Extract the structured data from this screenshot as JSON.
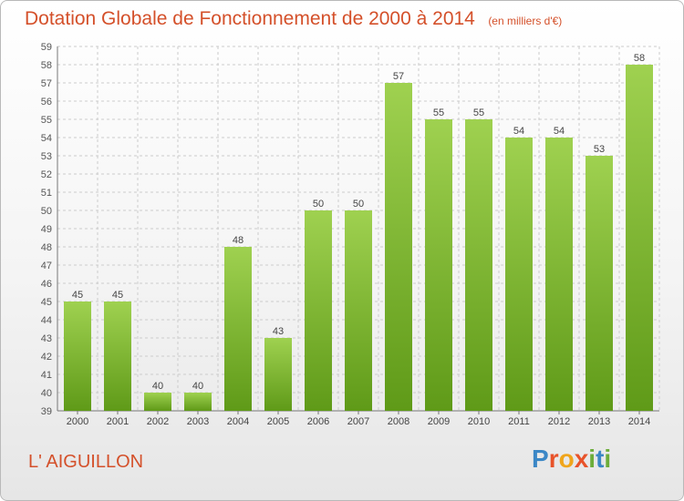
{
  "header": {
    "title": "Dotation Globale de Fonctionnement de 2000 à 2014",
    "subtitle": "(en milliers d'€)"
  },
  "footer": {
    "place": "L' AIGUILLON",
    "logo_letters": [
      "P",
      "r",
      "o",
      "x",
      "i",
      "t",
      "i"
    ]
  },
  "colors": {
    "title": "#d4502a",
    "bar_top": "#9fd150",
    "bar_bottom": "#5f9a18",
    "grid": "#cccccc",
    "logo_blue": "#3b87c6",
    "logo_orange": "#e8532a",
    "logo_yellow": "#f0a51b",
    "logo_green": "#6cad3a"
  },
  "chart_data": {
    "type": "bar",
    "title": "Dotation Globale de Fonctionnement de 2000 à 2014",
    "subtitle": "(en milliers d'€)",
    "xlabel": "",
    "ylabel": "",
    "categories": [
      "2000",
      "2001",
      "2002",
      "2003",
      "2004",
      "2005",
      "2006",
      "2007",
      "2008",
      "2009",
      "2010",
      "2011",
      "2012",
      "2013",
      "2014"
    ],
    "values": [
      45,
      45,
      40,
      40,
      48,
      43,
      50,
      50,
      57,
      55,
      55,
      54,
      54,
      53,
      58
    ],
    "data_labels": [
      "45",
      "45",
      "40",
      "40",
      "48",
      "43",
      "50",
      "50",
      "57",
      "55",
      "55",
      "54",
      "54",
      "53",
      "58"
    ],
    "ylim": [
      39,
      59
    ],
    "yticks": [
      "39",
      "40",
      "41",
      "42",
      "43",
      "44",
      "45",
      "46",
      "47",
      "48",
      "49",
      "50",
      "51",
      "52",
      "53",
      "54",
      "55",
      "56",
      "57",
      "58",
      "59"
    ],
    "grid": true,
    "legend": "none"
  }
}
